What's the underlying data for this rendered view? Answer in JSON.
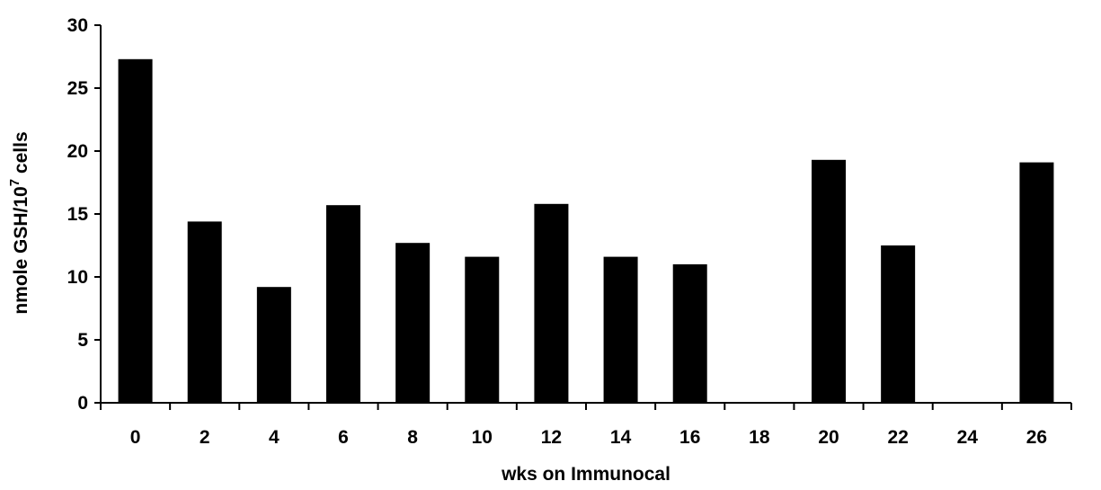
{
  "chart_data": {
    "type": "bar",
    "categories": [
      "0",
      "2",
      "4",
      "6",
      "8",
      "10",
      "12",
      "14",
      "16",
      "18",
      "20",
      "22",
      "24",
      "26"
    ],
    "values": [
      27.3,
      14.4,
      9.2,
      15.7,
      12.7,
      11.6,
      15.8,
      11.6,
      11.0,
      null,
      19.3,
      12.5,
      null,
      19.1
    ],
    "xlabel": "wks on Immunocal",
    "ylabel_main": "nmole GSH/10",
    "ylabel_sup": "7",
    "ylabel_tail": " cells",
    "ylim": [
      0,
      30
    ],
    "yticks": [
      0,
      5,
      10,
      15,
      20,
      25,
      30
    ],
    "grid": false,
    "bar_color": "#000000"
  }
}
